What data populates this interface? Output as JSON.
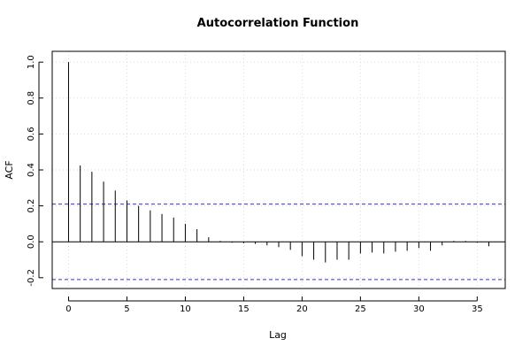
{
  "chart_data": {
    "type": "bar",
    "title": "Autocorrelation Function",
    "xlabel": "Lag",
    "ylabel": "ACF",
    "xlim": [
      -1.4,
      37.4
    ],
    "ylim": [
      -0.26,
      1.06
    ],
    "x_ticks": [
      0,
      5,
      10,
      15,
      20,
      25,
      30,
      35
    ],
    "x_tick_labels": [
      "0",
      "5",
      "10",
      "15",
      "20",
      "25",
      "30",
      "35"
    ],
    "y_ticks": [
      -0.2,
      0.0,
      0.2,
      0.4,
      0.6,
      0.8,
      1.0
    ],
    "y_tick_labels": [
      "-0.2",
      "0.0",
      "0.2",
      "0.4",
      "0.6",
      "0.8",
      "1.0"
    ],
    "grid": true,
    "confidence_bounds": [
      0.21,
      -0.21
    ],
    "colors": {
      "bars": "#000000",
      "confidence": "#3333cc",
      "grid": "#d9d9d9",
      "zero_line": "#000000"
    },
    "lags": [
      0,
      1,
      2,
      3,
      4,
      5,
      6,
      7,
      8,
      9,
      10,
      11,
      12,
      13,
      14,
      15,
      16,
      17,
      18,
      19,
      20,
      21,
      22,
      23,
      24,
      25,
      26,
      27,
      28,
      29,
      30,
      31,
      32,
      33,
      34,
      35,
      36
    ],
    "values": [
      1.0,
      0.425,
      0.39,
      0.335,
      0.285,
      0.23,
      0.2,
      0.175,
      0.155,
      0.135,
      0.1,
      0.07,
      0.025,
      0.005,
      -0.005,
      -0.008,
      -0.012,
      -0.02,
      -0.03,
      -0.045,
      -0.08,
      -0.1,
      -0.115,
      -0.1,
      -0.1,
      -0.065,
      -0.06,
      -0.065,
      -0.055,
      -0.05,
      -0.035,
      -0.05,
      -0.02,
      0.005,
      0.005,
      -0.005,
      -0.025
    ]
  }
}
